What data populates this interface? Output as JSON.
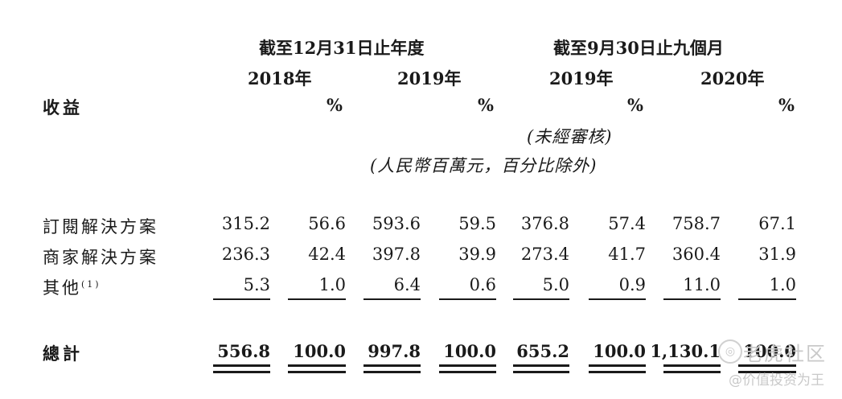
{
  "header": {
    "group1": "截至12月31日止年度",
    "group2": "截至9月30日止九個月",
    "years": [
      "2018年",
      "2019年",
      "2019年",
      "2020年"
    ],
    "pct_symbol": "%",
    "unaudited": "(未經審核)",
    "unit": "(人民幣百萬元，百分比除外)"
  },
  "section_label": "收益",
  "rows": [
    {
      "label": "訂閱解決方案",
      "sup": "",
      "values": [
        "315.2",
        "56.6",
        "593.6",
        "59.5",
        "376.8",
        "57.4",
        "758.7",
        "67.1"
      ]
    },
    {
      "label": "商家解決方案",
      "sup": "",
      "values": [
        "236.3",
        "42.4",
        "397.8",
        "39.9",
        "273.4",
        "41.7",
        "360.4",
        "31.9"
      ]
    },
    {
      "label": "其他",
      "sup": "(1)",
      "values": [
        "5.3",
        "1.0",
        "6.4",
        "0.6",
        "5.0",
        "0.9",
        "11.0",
        "1.0"
      ]
    }
  ],
  "total": {
    "label": "總計",
    "values": [
      "556.8",
      "100.0",
      "997.8",
      "100.0",
      "655.2",
      "100.0",
      "1,130.1",
      "100.0"
    ]
  },
  "watermark": {
    "line1": "老虎社区",
    "line2": "@价值投资为王"
  }
}
